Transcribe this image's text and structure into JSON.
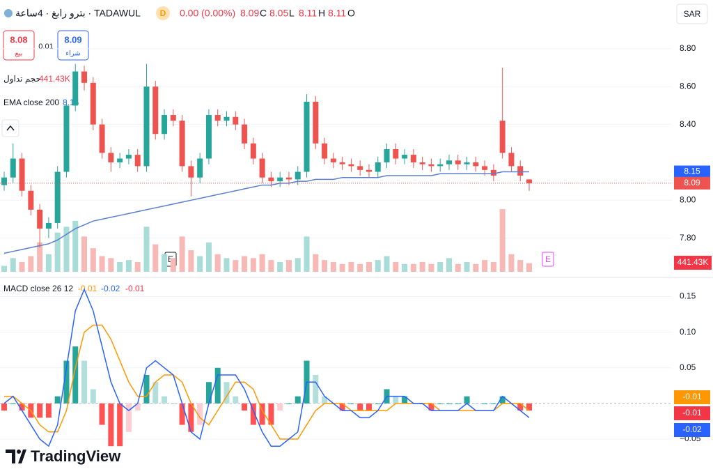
{
  "header": {
    "symbol": "بترو رابغ · 4ساعة · TADAWUL",
    "interval_badge": "D",
    "change": "0.00 (0.00%)",
    "ohlc_labels": [
      "O",
      "H",
      "L",
      "C"
    ]
  },
  "trade": {
    "sell_price": 8.08,
    "sell_label": "بيع",
    "spread": 0.01,
    "buy_price": 8.09,
    "buy_label": "شراء"
  },
  "currency": "SAR",
  "events": [
    "E",
    "E"
  ],
  "logo": "TradingView",
  "chart_data": [
    {
      "type": "candlestick",
      "open": [
        8.08,
        8.12,
        8.22,
        8.05,
        7.95,
        7.85,
        7.88,
        8.15,
        8.5,
        8.68,
        8.62,
        8.4,
        8.25,
        8.2,
        8.22,
        8.24,
        8.18,
        8.6,
        8.35,
        8.45,
        8.42,
        8.18,
        8.12,
        8.22,
        8.45,
        8.42,
        8.44,
        8.4,
        8.3,
        8.22,
        8.12,
        8.1,
        8.12,
        8.11,
        8.15,
        8.52,
        8.3,
        8.22,
        8.2,
        8.19,
        8.18,
        8.16,
        8.15,
        8.2,
        8.27,
        8.22,
        8.24,
        8.2,
        8.19,
        8.18,
        8.19,
        8.21,
        8.19,
        8.2,
        8.18,
        8.16,
        8.42,
        8.25,
        8.18,
        8.11
      ],
      "high": [
        8.15,
        8.3,
        8.25,
        8.08,
        7.98,
        7.91,
        8.18,
        8.53,
        8.72,
        8.71,
        8.65,
        8.43,
        8.28,
        8.25,
        8.27,
        8.27,
        8.72,
        8.63,
        8.48,
        8.48,
        8.45,
        8.21,
        8.25,
        8.48,
        8.48,
        8.47,
        8.47,
        8.43,
        8.33,
        8.25,
        8.15,
        8.15,
        8.15,
        8.18,
        8.56,
        8.55,
        8.33,
        8.25,
        8.23,
        8.22,
        8.21,
        8.19,
        8.23,
        8.3,
        8.3,
        8.27,
        8.27,
        8.23,
        8.22,
        8.22,
        8.24,
        8.24,
        8.23,
        8.23,
        8.21,
        8.19,
        8.7,
        8.28,
        8.21,
        8.11
      ],
      "low": [
        8.05,
        8.09,
        8.02,
        7.92,
        7.75,
        7.8,
        7.85,
        8.12,
        8.47,
        8.58,
        8.37,
        8.22,
        8.15,
        8.17,
        8.19,
        8.15,
        8.15,
        8.32,
        8.32,
        8.39,
        8.15,
        8.02,
        8.09,
        8.19,
        8.39,
        8.39,
        8.37,
        8.27,
        8.19,
        8.09,
        8.07,
        8.07,
        8.08,
        8.08,
        8.12,
        8.27,
        8.19,
        8.17,
        8.16,
        8.15,
        8.13,
        8.12,
        8.12,
        8.17,
        8.19,
        8.19,
        8.17,
        8.16,
        8.15,
        8.15,
        8.16,
        8.16,
        8.16,
        8.15,
        8.13,
        8.1,
        8.22,
        8.15,
        8.1,
        8.05
      ],
      "close": [
        8.12,
        8.22,
        8.05,
        7.95,
        7.85,
        7.88,
        8.15,
        8.5,
        8.68,
        8.62,
        8.4,
        8.25,
        8.2,
        8.22,
        8.24,
        8.18,
        8.6,
        8.35,
        8.45,
        8.42,
        8.18,
        8.12,
        8.22,
        8.45,
        8.42,
        8.44,
        8.4,
        8.3,
        8.22,
        8.12,
        8.1,
        8.12,
        8.11,
        8.15,
        8.52,
        8.3,
        8.22,
        8.2,
        8.19,
        8.18,
        8.16,
        8.15,
        8.2,
        8.27,
        8.22,
        8.24,
        8.2,
        8.19,
        8.18,
        8.19,
        8.21,
        8.19,
        8.2,
        8.18,
        8.16,
        8.13,
        8.25,
        8.18,
        8.13,
        8.09
      ],
      "colors": {
        "up": "#26a69a",
        "down": "#ef5350"
      },
      "ylim": [
        7.6,
        9.05
      ],
      "yticks": [
        {
          "value": 8.8,
          "label": "8.80"
        },
        {
          "value": 8.6,
          "label": "8.60"
        },
        {
          "value": 8.4,
          "label": "8.40"
        },
        {
          "value": 8.0,
          "label": "8.00"
        },
        {
          "value": 7.8,
          "label": "7.80"
        }
      ],
      "grid": true,
      "ema": {
        "name": "EMA close 200",
        "color": "#5b7fce",
        "values": [
          7.72,
          7.73,
          7.74,
          7.75,
          7.76,
          7.77,
          7.79,
          7.82,
          7.85,
          7.87,
          7.89,
          7.9,
          7.91,
          7.92,
          7.93,
          7.94,
          7.95,
          7.96,
          7.97,
          7.98,
          7.99,
          8.0,
          8.01,
          8.02,
          8.03,
          8.04,
          8.05,
          8.06,
          8.07,
          8.08,
          8.08,
          8.09,
          8.09,
          8.1,
          8.1,
          8.11,
          8.11,
          8.11,
          8.12,
          8.12,
          8.12,
          8.12,
          8.12,
          8.13,
          8.13,
          8.13,
          8.13,
          8.13,
          8.13,
          8.14,
          8.14,
          8.14,
          8.14,
          8.14,
          8.14,
          8.14,
          8.15,
          8.15,
          8.15,
          8.15
        ]
      },
      "volume": {
        "name": "حجم تداول",
        "value_label": "441.43K",
        "up_color": "#a8dcd7",
        "down_color": "#f7b9b6",
        "values": [
          300000,
          700000,
          500000,
          800000,
          1500000,
          900000,
          2000000,
          2300000,
          2600000,
          1800000,
          1200000,
          800000,
          700000,
          500000,
          600000,
          500000,
          2300000,
          1400000,
          900000,
          700000,
          1800000,
          1100000,
          800000,
          1500000,
          900000,
          700000,
          600000,
          800000,
          700000,
          900000,
          600000,
          500000,
          600000,
          700000,
          1800000,
          900000,
          600000,
          500000,
          400000,
          500000,
          400000,
          500000,
          600000,
          800000,
          500000,
          400000,
          400000,
          500000,
          400000,
          500000,
          700000,
          400000,
          500000,
          400000,
          600000,
          500000,
          3200000,
          900000,
          600000,
          441430
        ]
      }
    },
    {
      "type": "macd",
      "name": "MACD close 26 12",
      "macd": {
        "color": "#2962ff",
        "values": [
          0.0,
          0.01,
          -0.01,
          -0.03,
          -0.05,
          -0.06,
          -0.03,
          0.05,
          0.13,
          0.16,
          0.13,
          0.08,
          0.03,
          0.0,
          -0.01,
          0.0,
          0.05,
          0.06,
          0.05,
          0.04,
          0.0,
          -0.04,
          -0.05,
          0.0,
          0.04,
          0.04,
          0.04,
          0.02,
          -0.01,
          -0.04,
          -0.06,
          -0.06,
          -0.05,
          -0.04,
          0.03,
          0.03,
          0.01,
          0.0,
          -0.01,
          -0.01,
          -0.02,
          -0.02,
          -0.01,
          0.01,
          0.01,
          0.01,
          0.0,
          0.0,
          -0.01,
          -0.01,
          -0.01,
          -0.01,
          0.0,
          -0.01,
          -0.01,
          -0.01,
          0.01,
          0.0,
          -0.01,
          -0.02
        ]
      },
      "signal": {
        "color": "#ff9800",
        "values": [
          0.01,
          0.01,
          0.0,
          -0.01,
          -0.03,
          -0.04,
          -0.04,
          -0.01,
          0.05,
          0.1,
          0.11,
          0.11,
          0.09,
          0.06,
          0.03,
          0.01,
          0.01,
          0.03,
          0.04,
          0.04,
          0.03,
          0.0,
          -0.02,
          -0.03,
          -0.01,
          0.01,
          0.03,
          0.03,
          0.02,
          -0.01,
          -0.03,
          -0.05,
          -0.05,
          -0.05,
          -0.03,
          -0.01,
          0.0,
          0.0,
          0.0,
          -0.01,
          -0.01,
          -0.01,
          -0.01,
          -0.01,
          0.0,
          0.0,
          0.0,
          0.0,
          0.0,
          -0.01,
          -0.01,
          -0.01,
          -0.01,
          -0.01,
          -0.01,
          -0.01,
          0.0,
          0.0,
          0.0,
          -0.01
        ]
      },
      "histogram": {
        "colors": [
          "#26a69a",
          "#b2dfdb",
          "#ffcdd2",
          "#ff5252"
        ],
        "values": [
          -0.01,
          0,
          -0.01,
          -0.02,
          -0.02,
          -0.02,
          0.01,
          0.06,
          0.08,
          0.06,
          0.02,
          -0.03,
          -0.06,
          -0.06,
          -0.04,
          -0.01,
          0.04,
          0.03,
          0.01,
          0,
          -0.03,
          -0.04,
          -0.03,
          0.03,
          0.05,
          0.03,
          0.01,
          -0.01,
          -0.03,
          -0.03,
          -0.03,
          -0.01,
          0,
          0.01,
          0.06,
          0.04,
          0.01,
          0,
          -0.01,
          0,
          -0.01,
          -0.01,
          0,
          0.02,
          0.01,
          0.01,
          0,
          0,
          -0.01,
          0,
          0,
          0,
          0.01,
          0,
          0,
          0,
          0.01,
          0,
          -0.01,
          -0.01
        ]
      },
      "ylim": [
        -0.095,
        0.175
      ],
      "yticks": [
        0.15,
        {
          "value": 0.1,
          "label": "0.10"
        },
        0.05,
        {
          "value": -0.05,
          "label": "−0.05"
        }
      ]
    }
  ]
}
